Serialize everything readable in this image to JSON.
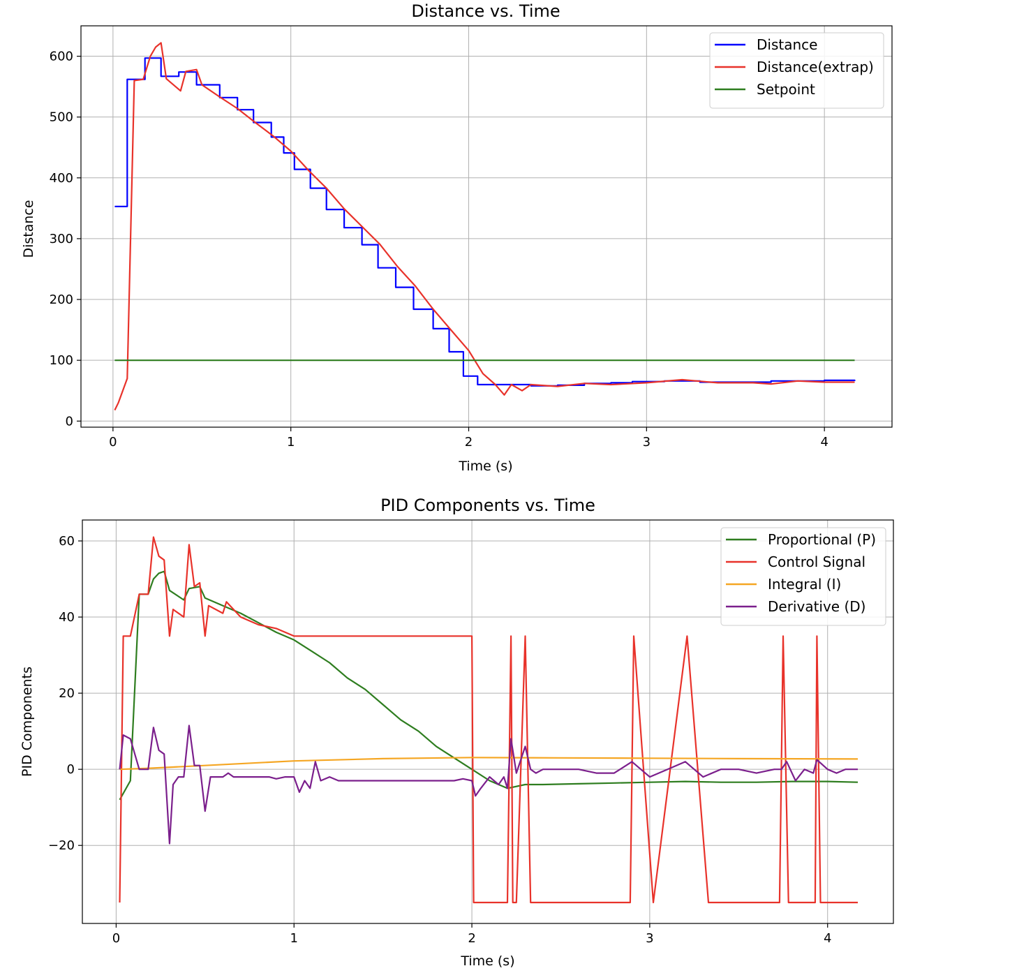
{
  "chart_data": [
    {
      "type": "line",
      "title": "Distance vs. Time",
      "xlabel": "Time (s)",
      "ylabel": "Distance",
      "xlim": [
        -0.18,
        4.38
      ],
      "ylim": [
        -10,
        650
      ],
      "xticks": [
        0,
        1,
        2,
        3,
        4
      ],
      "yticks": [
        0,
        100,
        200,
        300,
        400,
        500,
        600
      ],
      "xtick_labels": [
        "0",
        "1",
        "2",
        "3",
        "4"
      ],
      "ytick_labels": [
        "0",
        "100",
        "200",
        "300",
        "400",
        "500",
        "600"
      ],
      "grid": true,
      "legend_position": "top-right",
      "series": [
        {
          "name": "Distance",
          "color": "#0000ff",
          "step": true,
          "x": [
            0.01,
            0.08,
            0.12,
            0.18,
            0.27,
            0.37,
            0.47,
            0.6,
            0.7,
            0.79,
            0.89,
            0.96,
            1.02,
            1.11,
            1.2,
            1.3,
            1.4,
            1.49,
            1.59,
            1.69,
            1.8,
            1.89,
            1.97,
            2.05,
            2.15,
            2.22,
            2.35,
            2.5,
            2.65,
            2.8,
            2.92,
            3.1,
            3.3,
            3.5,
            3.7,
            3.85,
            4.0,
            4.17
          ],
          "y": [
            353,
            562,
            562,
            597,
            567,
            574,
            553,
            532,
            512,
            491,
            467,
            441,
            414,
            383,
            348,
            318,
            290,
            252,
            220,
            184,
            152,
            114,
            74,
            60,
            60,
            60,
            58,
            59,
            62,
            63,
            65,
            66,
            64,
            64,
            66,
            66,
            67,
            66
          ]
        },
        {
          "name": "Distance(extrap)",
          "color": "#e8322a",
          "step": false,
          "x": [
            0.01,
            0.03,
            0.08,
            0.12,
            0.17,
            0.21,
            0.24,
            0.27,
            0.3,
            0.38,
            0.41,
            0.47,
            0.5,
            0.6,
            0.7,
            0.8,
            0.9,
            1.0,
            1.1,
            1.2,
            1.3,
            1.4,
            1.5,
            1.6,
            1.7,
            1.8,
            1.9,
            2.0,
            2.08,
            2.15,
            2.2,
            2.24,
            2.3,
            2.35,
            2.5,
            2.65,
            2.8,
            3.0,
            3.2,
            3.4,
            3.6,
            3.7,
            3.85,
            4.0,
            4.17
          ],
          "y": [
            18,
            30,
            70,
            560,
            562,
            600,
            615,
            622,
            563,
            543,
            575,
            578,
            553,
            533,
            514,
            491,
            469,
            444,
            412,
            383,
            349,
            320,
            291,
            254,
            222,
            184,
            150,
            116,
            78,
            60,
            43,
            60,
            50,
            60,
            57,
            62,
            60,
            63,
            68,
            63,
            63,
            61,
            66,
            64,
            64
          ]
        },
        {
          "name": "Setpoint",
          "color": "#2e7d1f",
          "step": false,
          "x": [
            0.01,
            4.17
          ],
          "y": [
            100,
            100
          ]
        }
      ]
    },
    {
      "type": "line",
      "title": "PID Components vs. Time",
      "xlabel": "Time (s)",
      "ylabel": "PID Components",
      "xlim": [
        -0.19,
        4.37
      ],
      "ylim": [
        -40.5,
        65.5
      ],
      "xticks": [
        0,
        1,
        2,
        3,
        4
      ],
      "yticks": [
        -20,
        0,
        20,
        40,
        60
      ],
      "xtick_labels": [
        "0",
        "1",
        "2",
        "3",
        "4"
      ],
      "ytick_labels": [
        "−20",
        "0",
        "20",
        "40",
        "60"
      ],
      "grid": true,
      "legend_position": "top-right",
      "series": [
        {
          "name": "Proportional (P)",
          "color": "#2e7d1f",
          "x": [
            0.02,
            0.08,
            0.13,
            0.18,
            0.21,
            0.24,
            0.27,
            0.3,
            0.38,
            0.41,
            0.47,
            0.5,
            0.6,
            0.7,
            0.8,
            0.9,
            1.0,
            1.1,
            1.2,
            1.3,
            1.4,
            1.5,
            1.6,
            1.7,
            1.8,
            1.9,
            2.0,
            2.1,
            2.2,
            2.3,
            2.4,
            2.6,
            2.8,
            3.0,
            3.2,
            3.4,
            3.6,
            3.8,
            4.0,
            4.17
          ],
          "y": [
            -8,
            -3,
            46,
            46,
            50,
            51.5,
            52,
            47,
            44.5,
            47.5,
            48,
            45,
            43,
            41,
            38.5,
            36,
            34,
            31,
            28,
            24,
            21,
            17,
            13,
            10,
            6,
            3,
            0,
            -3,
            -5,
            -4,
            -4,
            -3.8,
            -3.6,
            -3.4,
            -3.2,
            -3.4,
            -3.4,
            -3.2,
            -3.2,
            -3.4
          ]
        },
        {
          "name": "Control Signal",
          "color": "#e8322a",
          "x": [
            0.02,
            0.04,
            0.08,
            0.13,
            0.18,
            0.21,
            0.24,
            0.27,
            0.3,
            0.32,
            0.38,
            0.41,
            0.44,
            0.47,
            0.5,
            0.52,
            0.6,
            0.62,
            0.7,
            0.8,
            0.9,
            1.0,
            2.0,
            2.01,
            2.2,
            2.22,
            2.23,
            2.25,
            2.3,
            2.33,
            2.35,
            2.38,
            2.89,
            2.91,
            3.02,
            3.21,
            3.33,
            3.73,
            3.75,
            3.78,
            3.85,
            3.93,
            3.94,
            3.96,
            4.17
          ],
          "y": [
            -35,
            35,
            35,
            46,
            46,
            61,
            56,
            55,
            35,
            42,
            40,
            59,
            48,
            49,
            35,
            43,
            41,
            44,
            40,
            38,
            37,
            35,
            35,
            -35,
            -35,
            35,
            -35,
            -35,
            35,
            -35,
            -35,
            -35,
            -35,
            35,
            -35,
            35,
            -35,
            -35,
            35,
            -35,
            -35,
            -35,
            35,
            -35,
            -35
          ]
        },
        {
          "name": "Integral (I)",
          "color": "#f5a623",
          "x": [
            0.02,
            0.2,
            0.5,
            1.0,
            1.5,
            2.0,
            2.5,
            3.0,
            3.5,
            4.17
          ],
          "y": [
            0,
            0.3,
            1.0,
            2.2,
            2.8,
            3.1,
            3.0,
            2.9,
            2.8,
            2.7
          ]
        },
        {
          "name": "Derivative (D)",
          "color": "#7b1f8c",
          "x": [
            0.02,
            0.04,
            0.08,
            0.13,
            0.18,
            0.21,
            0.24,
            0.27,
            0.3,
            0.32,
            0.35,
            0.38,
            0.41,
            0.44,
            0.47,
            0.5,
            0.53,
            0.56,
            0.6,
            0.63,
            0.66,
            0.7,
            0.74,
            0.78,
            0.82,
            0.86,
            0.9,
            0.95,
            1.0,
            1.03,
            1.06,
            1.09,
            1.12,
            1.15,
            1.2,
            1.25,
            1.3,
            1.35,
            1.4,
            1.45,
            1.5,
            1.55,
            1.6,
            1.65,
            1.7,
            1.75,
            1.8,
            1.85,
            1.9,
            1.95,
            2.0,
            2.02,
            2.05,
            2.1,
            2.15,
            2.18,
            2.2,
            2.22,
            2.25,
            2.3,
            2.33,
            2.36,
            2.4,
            2.5,
            2.6,
            2.7,
            2.8,
            2.9,
            3.0,
            3.1,
            3.2,
            3.3,
            3.4,
            3.5,
            3.6,
            3.7,
            3.74,
            3.77,
            3.82,
            3.87,
            3.92,
            3.94,
            4.0,
            4.05,
            4.1,
            4.17
          ],
          "y": [
            0,
            9,
            8,
            0,
            0,
            11,
            5,
            4,
            -19.5,
            -4,
            -2,
            -2,
            11.5,
            1,
            1,
            -11,
            -2,
            -2,
            -2,
            -1,
            -2,
            -2,
            -2,
            -2,
            -2,
            -2,
            -2.5,
            -2,
            -2,
            -6,
            -3,
            -5,
            2,
            -3,
            -2,
            -3,
            -3,
            -3,
            -3,
            -3,
            -3,
            -3,
            -3,
            -3,
            -3,
            -3,
            -3,
            -3,
            -3,
            -2.5,
            -3,
            -7,
            -5,
            -2,
            -4,
            -2,
            -5,
            8,
            -1,
            6,
            0,
            -1,
            0,
            0,
            0,
            -1,
            -1,
            2,
            -2,
            0,
            2,
            -2,
            0,
            0,
            -1,
            0,
            0,
            2,
            -3,
            0,
            -1,
            2.5,
            0,
            -1,
            0,
            0
          ]
        }
      ]
    }
  ]
}
